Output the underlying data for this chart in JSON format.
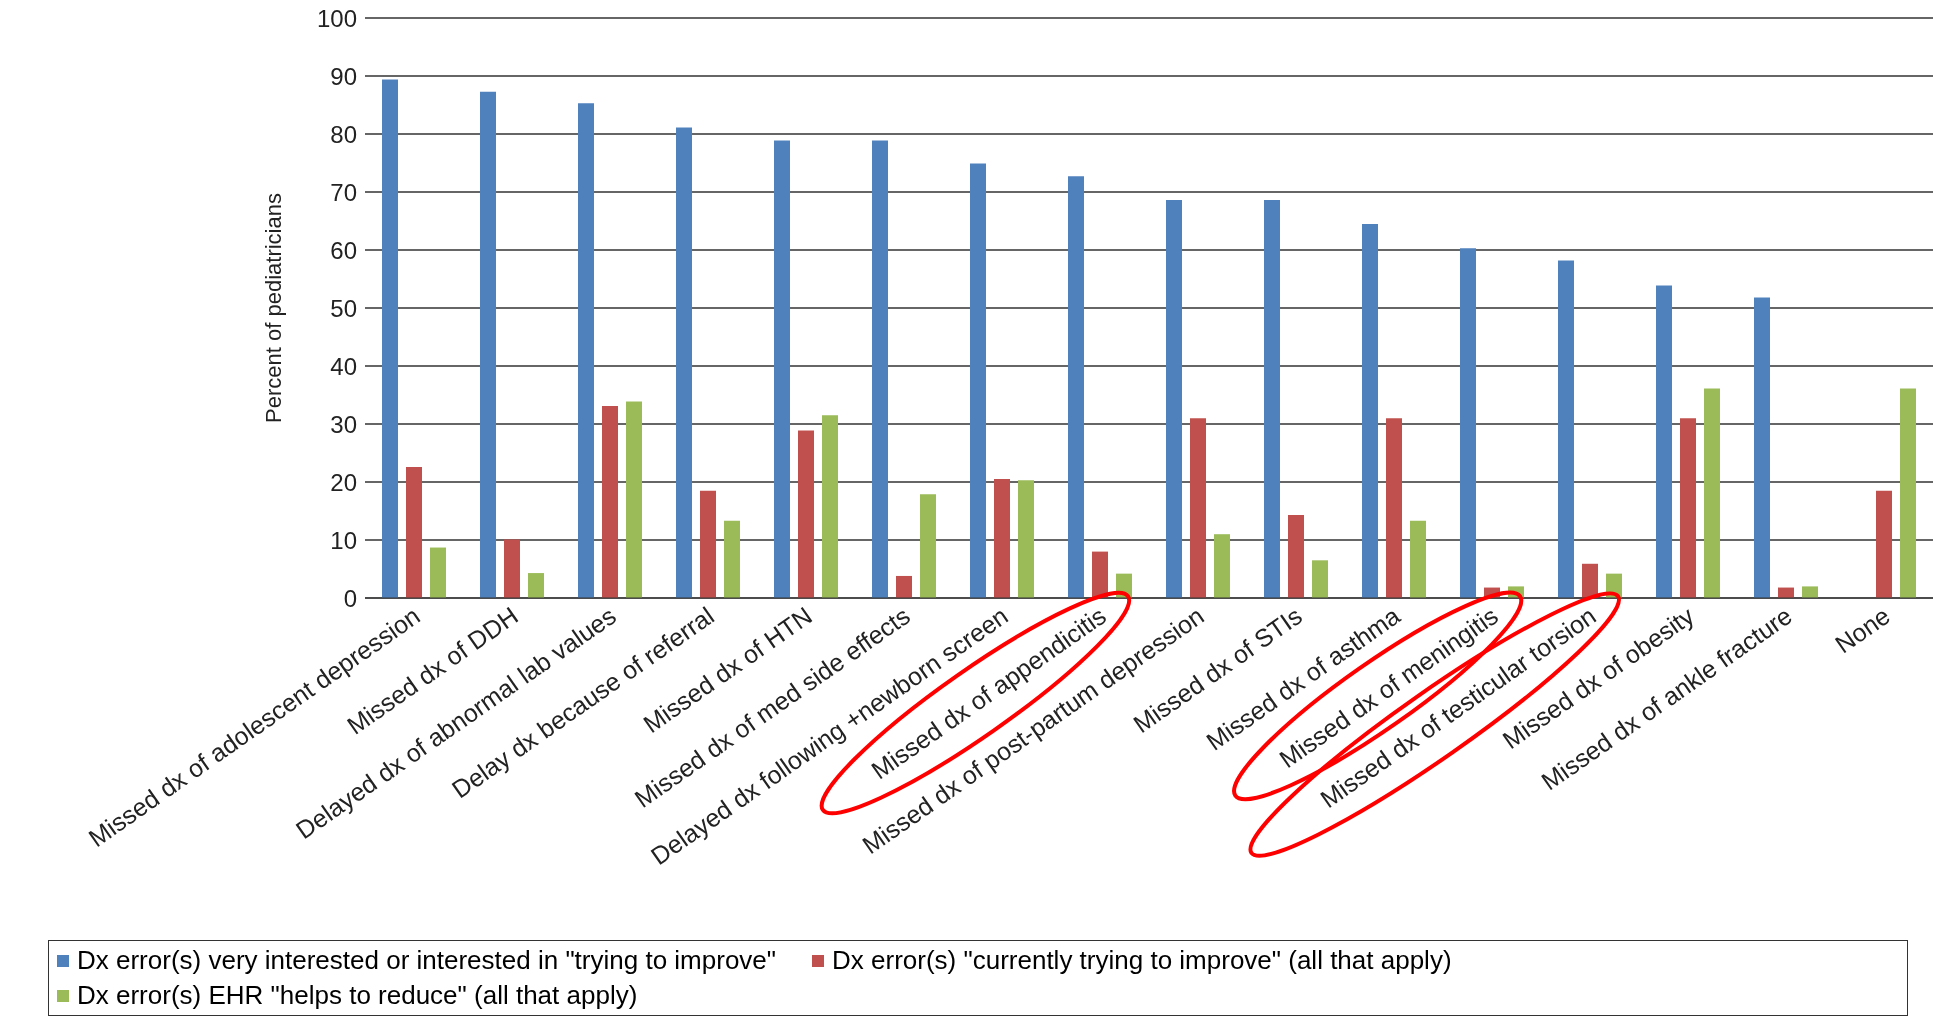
{
  "chart_data": {
    "type": "bar",
    "ylabel": "Percent of pediatricians",
    "categories": [
      "Missed dx of adolescent depression",
      "Missed dx of DDH",
      "Delayed dx of abnormal lab values",
      "Delay dx because of referral",
      "Missed dx of HTN",
      "Missed dx of med side effects",
      "Delayed dx following +newborn screen",
      "Missed dx of appendicitis",
      "Missed dx of post-partum depression",
      "Missed dx of STIs",
      "Missed dx of asthma",
      "Missed dx of meningitis",
      "Missed dx of testicular torsion",
      "Missed dx of obesity",
      "Missed dx of ankle fracture",
      "None"
    ],
    "series": [
      {
        "name": "Dx error(s) very interested or interested in \"trying to improve\"",
        "color": "#4f81bd",
        "values": [
          89.4,
          87.3,
          85.3,
          81.1,
          78.9,
          78.9,
          74.9,
          72.7,
          68.6,
          68.6,
          64.5,
          60.3,
          58.2,
          53.9,
          51.8,
          null
        ]
      },
      {
        "name": "Dx error(s) \"currently trying to improve\" (all that apply)",
        "color": "#c0504d",
        "values": [
          22.6,
          10.1,
          33.1,
          18.5,
          28.9,
          3.8,
          20.5,
          8.0,
          31.0,
          14.3,
          31.0,
          1.8,
          5.9,
          31.0,
          1.8,
          18.5
        ]
      },
      {
        "name": "Dx error(s) EHR \"helps to reduce\" (all that apply)",
        "color": "#9bbb59",
        "values": [
          8.7,
          4.3,
          33.9,
          13.3,
          31.5,
          17.9,
          20.3,
          4.2,
          11.0,
          6.5,
          13.3,
          2.0,
          4.2,
          36.1,
          2.0,
          36.1
        ]
      }
    ],
    "ylim": [
      0,
      100
    ],
    "yticks": [
      0,
      10,
      20,
      30,
      40,
      50,
      60,
      70,
      80,
      90,
      100
    ],
    "grid": "y",
    "legend": "bottom"
  }
}
